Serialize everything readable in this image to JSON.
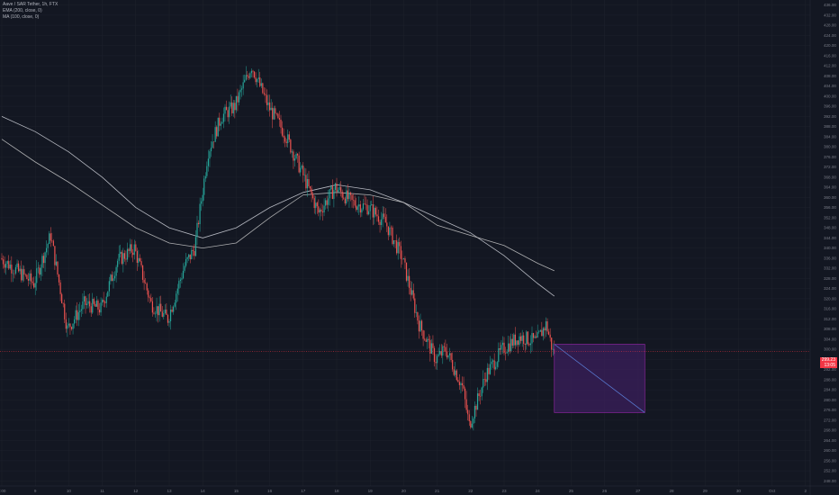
{
  "legend": {
    "title": "Aave / SAR Tether, 1h, FTX",
    "ema": "EMA (200, close, 0)",
    "ma": "MA (100, close, 0)"
  },
  "price_label": "299.23",
  "countdown": "13:05",
  "colors": {
    "background": "#131722",
    "grid": "#1e222d",
    "up": "#26a69a",
    "down": "#ef5350",
    "ema": "#d1d4dc",
    "ma": "#c9c9c9",
    "last_price_line": "#f23645",
    "forecast_box": "#3b1f5c",
    "forecast_border": "#9c27b0",
    "forecast_line": "#5b7fd8"
  },
  "chart_data": {
    "type": "candlestick",
    "y_ticks": [
      "436.00",
      "432.00",
      "428.00",
      "424.00",
      "420.00",
      "416.00",
      "412.00",
      "408.00",
      "404.00",
      "400.00",
      "396.00",
      "392.00",
      "388.00",
      "384.00",
      "380.00",
      "376.00",
      "372.00",
      "368.00",
      "364.00",
      "360.00",
      "356.00",
      "352.00",
      "348.00",
      "344.00",
      "340.00",
      "336.00",
      "332.00",
      "328.00",
      "324.00",
      "320.00",
      "316.00",
      "312.00",
      "308.00",
      "304.00",
      "300.00",
      "296.00",
      "292.00",
      "288.00",
      "284.00",
      "280.00",
      "276.00",
      "272.00",
      "268.00",
      "264.00",
      "260.00",
      "256.00",
      "252.00",
      "248.00"
    ],
    "ylim": [
      246,
      438
    ],
    "x_ticks": [
      "0:00",
      "9",
      "10",
      "11",
      "12",
      "13",
      "14",
      "15",
      "16",
      "17",
      "18",
      "19",
      "20",
      "21",
      "22",
      "23",
      "24",
      "25",
      "26",
      "27",
      "28",
      "29",
      "30",
      "Oct",
      "2"
    ],
    "anchors": [
      {
        "day": 0.0,
        "price": 336
      },
      {
        "day": 1.0,
        "price": 326
      },
      {
        "day": 1.5,
        "price": 345
      },
      {
        "day": 2.0,
        "price": 308
      },
      {
        "day": 2.5,
        "price": 318
      },
      {
        "day": 3.0,
        "price": 316
      },
      {
        "day": 3.5,
        "price": 335
      },
      {
        "day": 4.0,
        "price": 340
      },
      {
        "day": 4.5,
        "price": 318
      },
      {
        "day": 5.0,
        "price": 312
      },
      {
        "day": 5.5,
        "price": 333
      },
      {
        "day": 5.8,
        "price": 340
      },
      {
        "day": 6.2,
        "price": 378
      },
      {
        "day": 6.6,
        "price": 392
      },
      {
        "day": 7.0,
        "price": 396
      },
      {
        "day": 7.5,
        "price": 412
      },
      {
        "day": 8.0,
        "price": 396
      },
      {
        "day": 8.5,
        "price": 385
      },
      {
        "day": 9.0,
        "price": 370
      },
      {
        "day": 9.5,
        "price": 354
      },
      {
        "day": 10.0,
        "price": 364
      },
      {
        "day": 10.5,
        "price": 358
      },
      {
        "day": 11.0,
        "price": 356
      },
      {
        "day": 11.5,
        "price": 350
      },
      {
        "day": 12.0,
        "price": 336
      },
      {
        "day": 12.5,
        "price": 310
      },
      {
        "day": 13.0,
        "price": 296
      },
      {
        "day": 13.3,
        "price": 300
      },
      {
        "day": 13.8,
        "price": 285
      },
      {
        "day": 14.0,
        "price": 270
      },
      {
        "day": 14.5,
        "price": 290
      },
      {
        "day": 15.0,
        "price": 300
      },
      {
        "day": 15.5,
        "price": 305
      },
      {
        "day": 16.0,
        "price": 303
      },
      {
        "day": 16.3,
        "price": 310
      },
      {
        "day": 16.5,
        "price": 299
      }
    ],
    "ema_200": [
      {
        "day": 0.0,
        "price": 392
      },
      {
        "day": 1.0,
        "price": 386
      },
      {
        "day": 2.0,
        "price": 378
      },
      {
        "day": 3.0,
        "price": 368
      },
      {
        "day": 4.0,
        "price": 356
      },
      {
        "day": 5.0,
        "price": 348
      },
      {
        "day": 6.0,
        "price": 344
      },
      {
        "day": 7.0,
        "price": 348
      },
      {
        "day": 8.0,
        "price": 356
      },
      {
        "day": 9.0,
        "price": 362
      },
      {
        "day": 10.0,
        "price": 365
      },
      {
        "day": 11.0,
        "price": 363
      },
      {
        "day": 12.0,
        "price": 358
      },
      {
        "day": 13.0,
        "price": 352
      },
      {
        "day": 14.0,
        "price": 346
      },
      {
        "day": 15.0,
        "price": 337
      },
      {
        "day": 16.0,
        "price": 326
      },
      {
        "day": 16.5,
        "price": 321
      }
    ],
    "ma_100": [
      {
        "day": 0.0,
        "price": 383
      },
      {
        "day": 1.0,
        "price": 374
      },
      {
        "day": 2.0,
        "price": 366
      },
      {
        "day": 3.0,
        "price": 357
      },
      {
        "day": 4.0,
        "price": 348
      },
      {
        "day": 5.0,
        "price": 342
      },
      {
        "day": 6.0,
        "price": 340
      },
      {
        "day": 7.0,
        "price": 342
      },
      {
        "day": 8.0,
        "price": 352
      },
      {
        "day": 9.0,
        "price": 361
      },
      {
        "day": 10.0,
        "price": 362
      },
      {
        "day": 11.0,
        "price": 361
      },
      {
        "day": 12.0,
        "price": 358
      },
      {
        "day": 13.0,
        "price": 349
      },
      {
        "day": 14.0,
        "price": 345
      },
      {
        "day": 15.0,
        "price": 341
      },
      {
        "day": 16.0,
        "price": 334
      },
      {
        "day": 16.5,
        "price": 331
      }
    ],
    "last_price": 299.2,
    "forecast": {
      "day_start": 16.5,
      "day_end": 19.2,
      "price_top": 302,
      "price_bottom": 275,
      "line_start": 302,
      "line_end": 275
    }
  }
}
